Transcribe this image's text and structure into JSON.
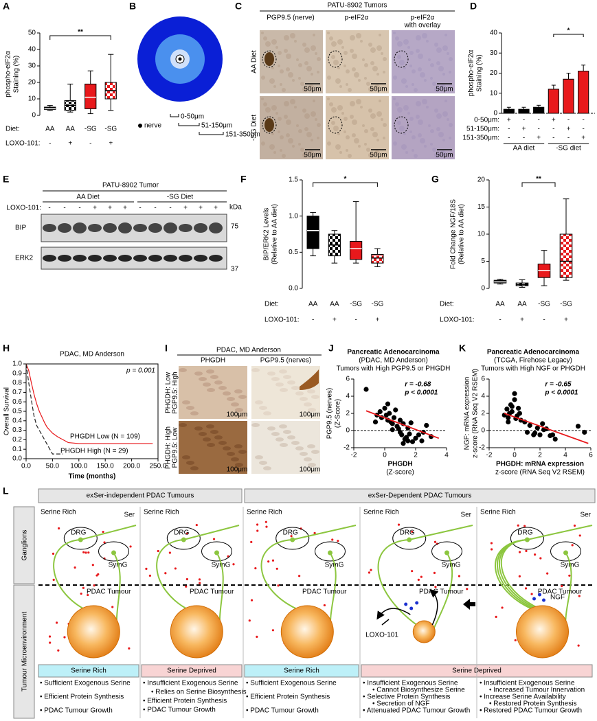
{
  "chart_data": [
    {
      "panel": "A",
      "type": "box",
      "ylabel": [
        "phospho-eIF2α",
        "Staining (%)"
      ],
      "ylim": [
        0,
        50
      ],
      "yticks": [
        0,
        10,
        20,
        30,
        40,
        50
      ],
      "boxes": [
        {
          "min": 3,
          "q1": 3.5,
          "median": 4,
          "q3": 5,
          "max": 6
        },
        {
          "min": 2,
          "q1": 3,
          "median": 6,
          "q3": 9,
          "max": 19
        },
        {
          "min": 1,
          "q1": 4,
          "median": 11,
          "q3": 19,
          "max": 27
        },
        {
          "min": 3,
          "q1": 10,
          "median": 15,
          "q3": 20,
          "max": 37
        }
      ],
      "colors": [
        "#000000",
        "#000000",
        "#e8191c",
        "#e8191c"
      ],
      "patterned": [
        false,
        true,
        false,
        true
      ],
      "rows": [
        {
          "label": "Diet:",
          "values": [
            "AA",
            "AA",
            "-SG",
            "-SG"
          ]
        },
        {
          "label": "LOXO-101:",
          "values": [
            "-",
            "+",
            "-",
            "+"
          ]
        }
      ],
      "significance": "**"
    },
    {
      "panel": "D",
      "type": "bar",
      "ylabel": [
        "phospho-eIF2α",
        "Staining (%)"
      ],
      "ylim": [
        0,
        40
      ],
      "yticks": [
        0,
        10,
        20,
        30,
        40
      ],
      "values": [
        2,
        2,
        3,
        12,
        17,
        21
      ],
      "errors": [
        1,
        1,
        1,
        2,
        3,
        3
      ],
      "colors": [
        "#000000",
        "#000000",
        "#000000",
        "#e8191c",
        "#e8191c",
        "#e8191c"
      ],
      "rows": [
        {
          "label": "0-50μm:",
          "values": [
            "+",
            "-",
            "-",
            "+",
            "-",
            "-"
          ]
        },
        {
          "label": "51-150μm:",
          "values": [
            "-",
            "+",
            "-",
            "-",
            "+",
            "-"
          ]
        },
        {
          "label": "151-350μm:",
          "values": [
            "-",
            "-",
            "+",
            "-",
            "-",
            "+"
          ]
        }
      ],
      "groups": [
        "AA diet",
        "-SG diet"
      ],
      "significance": "*",
      "zero_line": true
    },
    {
      "panel": "F",
      "type": "box",
      "ylabel": [
        "BIP/ERK2 Levels",
        "(Relative to AA diet)"
      ],
      "ylim": [
        0,
        1.5
      ],
      "yticks": [
        {
          "value": 0,
          "label": "0.0"
        },
        0.5,
        {
          "value": 1,
          "label": "1.0"
        },
        1.5
      ],
      "boxes": [
        {
          "min": 0.45,
          "q1": 0.55,
          "median": 0.8,
          "q3": 1.0,
          "max": 1.05
        },
        {
          "min": 0.35,
          "q1": 0.45,
          "median": 0.6,
          "q3": 0.75,
          "max": 0.8
        },
        {
          "min": 0.35,
          "q1": 0.4,
          "median": 0.55,
          "q3": 0.65,
          "max": 1.2
        },
        {
          "min": 0.3,
          "q1": 0.35,
          "median": 0.42,
          "q3": 0.47,
          "max": 0.55
        }
      ],
      "colors": [
        "#000000",
        "#000000",
        "#e8191c",
        "#e8191c"
      ],
      "patterned": [
        false,
        true,
        false,
        true
      ],
      "rows": [
        {
          "label": "Diet:",
          "values": [
            "AA",
            "AA",
            "-SG",
            "-SG"
          ]
        },
        {
          "label": "LOXO-101:",
          "values": [
            "-",
            "+",
            "-",
            "+"
          ]
        }
      ],
      "significance": "*"
    },
    {
      "panel": "G",
      "type": "box",
      "ylabel": [
        "Fold Change NGF/18S",
        "(Relative to AA diet)"
      ],
      "ylim": [
        0,
        20
      ],
      "yticks": [
        0,
        5,
        10,
        15,
        20
      ],
      "boxes": [
        {
          "min": 0.8,
          "q1": 1,
          "median": 1.2,
          "q3": 1.5,
          "max": 1.7
        },
        {
          "min": 0.2,
          "q1": 0.5,
          "median": 0.7,
          "q3": 1,
          "max": 1.6
        },
        {
          "min": 0.5,
          "q1": 2,
          "median": 3.3,
          "q3": 4.5,
          "max": 7
        },
        {
          "min": 1.5,
          "q1": 2,
          "median": 5,
          "q3": 10,
          "max": 16.5
        }
      ],
      "colors": [
        "#000000",
        "#000000",
        "#e8191c",
        "#e8191c"
      ],
      "patterned": [
        false,
        true,
        false,
        true
      ],
      "rows": [
        {
          "label": "Diet:",
          "values": [
            "AA",
            "AA",
            "-SG",
            "-SG"
          ]
        },
        {
          "label": "LOXO-101:",
          "values": [
            "-",
            "+",
            "-",
            "+"
          ]
        }
      ],
      "significance": "**"
    },
    {
      "panel": "H",
      "type": "line",
      "title": "PDAC, MD Anderson",
      "ylabel": [
        "Overall Survival"
      ],
      "xlabel": "Time (months)",
      "annotation": "p = 0.001",
      "xlim": [
        0,
        250
      ],
      "xticks": [
        {
          "value": 0,
          "label": "0.0"
        },
        {
          "value": 50,
          "label": "50.0"
        },
        {
          "value": 100,
          "label": "100.0"
        },
        {
          "value": 150,
          "label": "150.0"
        },
        {
          "value": 200,
          "label": "200.0"
        },
        {
          "value": 250,
          "label": "250.0"
        }
      ],
      "ylim": [
        0,
        1
      ],
      "yticks": [
        {
          "value": 0,
          "label": "0.0"
        },
        0.1,
        0.2,
        0.3,
        0.4,
        0.5,
        0.6,
        0.7,
        0.8,
        0.9,
        {
          "value": 1,
          "label": "1.0"
        }
      ],
      "series": [
        {
          "name": "PHGDH Low (N = 109)",
          "color": "#e8191c",
          "dashed": false,
          "x": [
            0,
            5,
            10,
            15,
            20,
            25,
            30,
            35,
            40,
            45,
            50,
            60,
            70,
            80,
            100,
            150,
            200,
            240
          ],
          "values": [
            1,
            0.93,
            0.8,
            0.68,
            0.58,
            0.5,
            0.44,
            0.38,
            0.33,
            0.3,
            0.27,
            0.23,
            0.2,
            0.17,
            0.16,
            0.16,
            0.16,
            0.16
          ]
        },
        {
          "name": "PHGDH High (N = 29)",
          "color": "#222222",
          "dashed": true,
          "x": [
            0,
            5,
            10,
            15,
            20,
            25,
            30,
            40,
            50,
            60,
            70
          ],
          "values": [
            1,
            0.8,
            0.62,
            0.45,
            0.35,
            0.3,
            0.25,
            0.15,
            0.05,
            0.05,
            0.05
          ]
        }
      ]
    },
    {
      "panel": "J",
      "type": "scatter",
      "title": [
        "Pancreatic Adenocarcinoma",
        "(PDAC, MD Anderson)",
        "Tumors with High PGP9.5 or PHGDH"
      ],
      "ylabel": [
        "PGP9.5 (nerves)",
        "(Z-Score)"
      ],
      "xlabel": [
        "PHGDH",
        "(Z-score)"
      ],
      "annotations": [
        "r = -0.68",
        "p < 0.0001"
      ],
      "xlim": [
        -2,
        4
      ],
      "xticks": [
        -2,
        0,
        2,
        4
      ],
      "ylim": [
        -2,
        6
      ],
      "yticks": [
        -2,
        0,
        2,
        4,
        6
      ],
      "zero_line": true,
      "x": [
        -1.2,
        -0.6,
        -0.5,
        -0.3,
        -0.2,
        0,
        0.1,
        0.2,
        0.3,
        0.4,
        0.5,
        0.6,
        0.7,
        0.8,
        0.9,
        1.0,
        1.0,
        1.1,
        1.2,
        1.3,
        1.4,
        1.5,
        1.5,
        1.6,
        1.8,
        2.0,
        2.2,
        2.4,
        2.7,
        3.0,
        0.5,
        1.2,
        0.2,
        1.7,
        2.5
      ],
      "values": [
        4.8,
        1.0,
        1.8,
        2.2,
        1.5,
        2.6,
        1.8,
        1.2,
        2.0,
        1.0,
        0.8,
        1.5,
        2.4,
        0.5,
        0.2,
        -0.2,
        1.2,
        -0.5,
        0.8,
        -1.0,
        -0.8,
        -1.2,
        0.3,
        -0.4,
        -1.3,
        -0.9,
        -0.5,
        -1.2,
        0.6,
        -0.7,
        0.1,
        -1.5,
        3.1,
        0.9,
        -0.2
      ],
      "trend_x": [
        -1.2,
        3.5
      ],
      "trend_y": [
        2.3,
        -0.9
      ],
      "trend_color": "#e8191c"
    },
    {
      "panel": "K",
      "type": "scatter",
      "title": [
        "Pancreatic Adenocarcinoma",
        "(TCGA,  Firehose Legacy)",
        "Tumors with High NGF or PHGDH"
      ],
      "ylabel": [
        "NGF: mRNA expression",
        "z-score (RNA Seq V2 RSEM)"
      ],
      "xlabel": [
        "PHGDH: mRNA expression",
        "z-score (RNA Seq V2 RSEM)"
      ],
      "annotations": [
        "r = -0.65",
        "p < 0.0001"
      ],
      "xlim": [
        -2,
        6
      ],
      "xticks": [
        -2,
        0,
        2,
        4,
        6
      ],
      "ylim": [
        -2,
        6
      ],
      "yticks": [
        -2,
        0,
        2,
        4,
        6
      ],
      "zero_line": true,
      "x": [
        -0.8,
        -0.6,
        -0.5,
        -0.4,
        -0.3,
        -0.2,
        0,
        0,
        0.1,
        0.2,
        0.3,
        0.5,
        0.8,
        1.0,
        1.2,
        1.5,
        1.8,
        2.0,
        2.2,
        2.5,
        2.8,
        3.0,
        3.2,
        -0.5,
        0.4,
        1.6,
        2.3,
        5.0,
        5.5,
        -0.2
      ],
      "values": [
        1.8,
        2.5,
        1.5,
        2.0,
        3.0,
        2.2,
        4.3,
        3.6,
        1.4,
        1.7,
        2.6,
        1.2,
        1.0,
        -0.2,
        0.6,
        -0.5,
        0.3,
        -0.5,
        0.8,
        0.2,
        -0.6,
        -0.5,
        -1.0,
        1.0,
        2.0,
        -0.3,
        0.1,
        0.5,
        -0.2,
        2.8
      ],
      "trend_x": [
        -0.8,
        5.8
      ],
      "trend_y": [
        2.0,
        -1.5
      ],
      "trend_color": "#e8191c"
    }
  ],
  "panel_b": {
    "letter": "B",
    "legend": [
      "nerve",
      "0-50μm",
      "51-150μm",
      "151-350μm"
    ]
  },
  "panel_c": {
    "letter": "C",
    "title": "PATU-8902 Tumors",
    "columns": [
      [
        "PGP9.5 (nerve)"
      ],
      [
        "p-eIF2α"
      ],
      [
        "p-eIF2α",
        "with overlay"
      ]
    ],
    "rows": [
      "AA Diet",
      "-SG Diet"
    ],
    "scale_bar": "50μm"
  },
  "panel_e": {
    "letter": "E",
    "title": "PATU-8902 Tumor",
    "groups": [
      "AA Diet",
      "-SG Diet"
    ],
    "treatment_label": "LOXO-101:",
    "lanes": [
      "-",
      "-",
      "-",
      "+",
      "+",
      "+",
      "-",
      "-",
      "-",
      "+",
      "+",
      "+"
    ],
    "bands": [
      "BIP",
      "ERK2"
    ],
    "unit": "kDa",
    "markers": [
      "75",
      "37"
    ]
  },
  "panel_i": {
    "letter": "I",
    "title": "PDAC, MD Anderson",
    "columns": [
      "PHGDH",
      "PGP9.5 (nerves)"
    ],
    "rows": [
      [
        "PHGDH: Low",
        "PGP9.5: High"
      ],
      [
        "PHGDH: High",
        "PGP9.5: Low"
      ]
    ],
    "scale_bar": "100μm"
  },
  "panel_l": {
    "letter": "L",
    "headers": [
      "exSer-independent PDAC Tumours",
      "exSer-Dependent PDAC Tumours"
    ],
    "side_labels": [
      "Ganglions",
      "Tumour Microenvironment"
    ],
    "columns": [
      {
        "top": "Serine Rich",
        "ser": "Ser",
        "drg": "DRG",
        "symg": "SymG",
        "tumour": "PDAC Tumour",
        "condition": "Serine Rich",
        "bullets": [
          "• Sufficient Exogenous Serine",
          "• Efficient Protein Synthesis",
          "• PDAC Tumour Growth"
        ]
      },
      {
        "top": "Serine Rich",
        "drg": "DRG",
        "symg": "SymG",
        "tumour": "PDAC Tumour",
        "condition": "Serine Deprived",
        "bullets": [
          "• Insufficient Exogenous Serine",
          "• Relies on Serine Biosynthesis",
          "• Efficient Protein Synthesis",
          "• PDAC Tumour Growth"
        ]
      },
      {
        "top": "Serine Rich",
        "drg": "DRG",
        "symg": "SymG",
        "tumour": "PDAC Tumour",
        "condition": "Serine Rich",
        "bullets": [
          "• Sufficient Exogenous Serine",
          "• Efficient Protein Synthesis",
          "• PDAC Tumour Growth"
        ]
      },
      {
        "top": "Serine Rich",
        "ser": "Ser",
        "drg": "DRG",
        "symg": "SymG",
        "tumour": "PDAC Tumour",
        "condition": "Serine Deprived",
        "extra": "LOXO-101",
        "bullets": [
          "• Insufficient Exogenous Serine",
          "• Cannot Biosynthesize Serine",
          "• Selective Protein Synthesis",
          "• Secretion of NGF",
          "• Attenuated PDAC Tumour Growth"
        ]
      },
      {
        "top": "Serine Rich",
        "ser": "Ser",
        "drg": "DRG",
        "symg": "SymG",
        "tumour": "PDAC Tumour",
        "extra": "NGF",
        "bullets": [
          "• Insufficient Exogenous Serine",
          "• Increased Tumour Innervation",
          "• Increase Serine Availability",
          "• Restored Protein Synthesis",
          "• Restored PDAC Tumour Growth"
        ]
      }
    ]
  }
}
